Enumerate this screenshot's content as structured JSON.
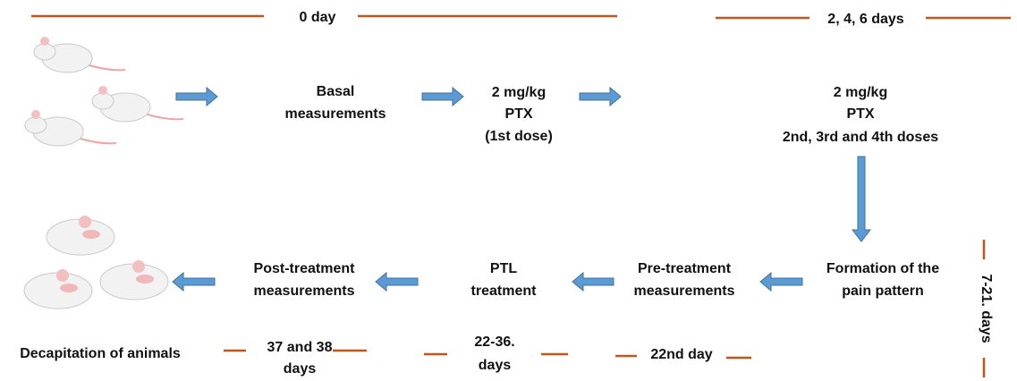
{
  "timeline": {
    "day0": "0 day",
    "days246": "2, 4, 6 days",
    "days7_21": "7-21. days",
    "day22": "22nd day",
    "days22_36": [
      "22-36.",
      "days"
    ],
    "days37_38": [
      "37 and 38",
      "days"
    ]
  },
  "steps": {
    "basal": [
      "Basal",
      "measurements"
    ],
    "first_dose": [
      "2 mg/kg",
      "PTX",
      "(1st dose)"
    ],
    "later_doses": [
      "2 mg/kg",
      "PTX",
      "2nd, 3rd and 4th doses"
    ],
    "pain_pattern": [
      "Formation of the",
      "pain pattern"
    ],
    "pre_treatment": [
      "Pre-treatment",
      "measurements"
    ],
    "ptl_treatment": [
      "PTL",
      "treatment"
    ],
    "post_treatment": [
      "Post-treatment",
      "measurements"
    ],
    "decapitation": "Decapitation of animals"
  }
}
